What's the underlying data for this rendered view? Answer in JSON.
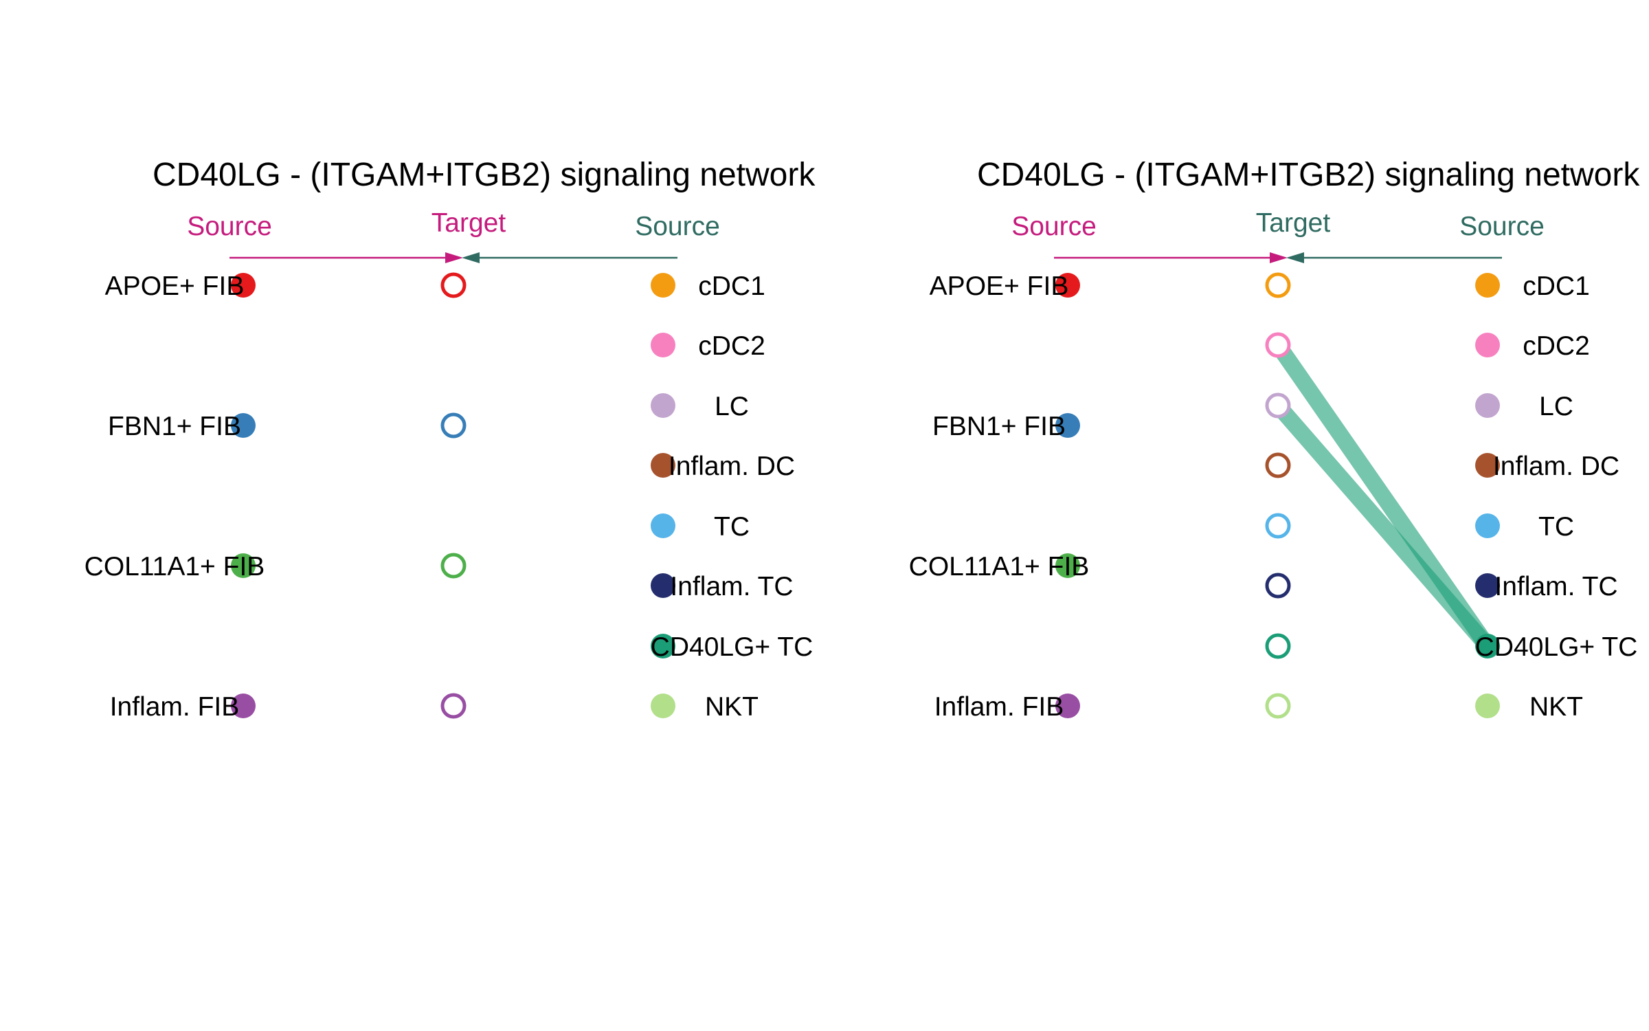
{
  "panels": [
    {
      "title": "CD40LG - (ITGAM+ITGB2) signaling network",
      "header_left": "Source",
      "header_middle": "Target",
      "header_right": "Source",
      "header_left_color": "#C51B7D",
      "header_middle_color": "#C51B7D",
      "header_right_color": "#2F6B61",
      "sources_left": [
        {
          "label": "APOE+ FIB",
          "color": "#E41A1C"
        },
        {
          "label": "FBN1+ FIB",
          "color": "#377EB8"
        },
        {
          "label": "COL11A1+ FIB",
          "color": "#4DAF4A"
        },
        {
          "label": "Inflam. FIB",
          "color": "#984EA3"
        }
      ],
      "targets": [
        {
          "color": "#E41A1C"
        },
        {
          "color": "#377EB8"
        },
        {
          "color": "#4DAF4A"
        },
        {
          "color": "#984EA3"
        }
      ],
      "sources_right": [
        {
          "label": "cDC1",
          "color": "#F39C12"
        },
        {
          "label": "cDC2",
          "color": "#F781BF"
        },
        {
          "label": "LC",
          "color": "#C2A5CF"
        },
        {
          "label": "Inflam. DC",
          "color": "#A6522C"
        },
        {
          "label": "TC",
          "color": "#56B4E9"
        },
        {
          "label": "Inflam. TC",
          "color": "#242E6E"
        },
        {
          "label": "CD40LG+ TC",
          "color": "#1B9E77"
        },
        {
          "label": "NKT",
          "color": "#B2DF8A"
        }
      ],
      "links": []
    },
    {
      "title": "CD40LG - (ITGAM+ITGB2) signaling network",
      "header_left": "Source",
      "header_middle": "Target",
      "header_right": "Source",
      "header_left_color": "#C51B7D",
      "header_middle_color": "#2F6B61",
      "header_right_color": "#2F6B61",
      "sources_left": [
        {
          "label": "APOE+ FIB",
          "color": "#E41A1C"
        },
        {
          "label": "FBN1+ FIB",
          "color": "#377EB8"
        },
        {
          "label": "COL11A1+ FIB",
          "color": "#4DAF4A"
        },
        {
          "label": "Inflam. FIB",
          "color": "#984EA3"
        }
      ],
      "targets": [
        {
          "color": "#F39C12"
        },
        {
          "color": "#F781BF"
        },
        {
          "color": "#C2A5CF"
        },
        {
          "color": "#A6522C"
        },
        {
          "color": "#56B4E9"
        },
        {
          "color": "#242E6E"
        },
        {
          "color": "#1B9E77"
        },
        {
          "color": "#B2DF8A"
        }
      ],
      "sources_right": [
        {
          "label": "cDC1",
          "color": "#F39C12"
        },
        {
          "label": "cDC2",
          "color": "#F781BF"
        },
        {
          "label": "LC",
          "color": "#C2A5CF"
        },
        {
          "label": "Inflam. DC",
          "color": "#A6522C"
        },
        {
          "label": "TC",
          "color": "#56B4E9"
        },
        {
          "label": "Inflam. TC",
          "color": "#242E6E"
        },
        {
          "label": "CD40LG+ TC",
          "color": "#1B9E77"
        },
        {
          "label": "NKT",
          "color": "#B2DF8A"
        }
      ],
      "links": [
        {
          "from": "CD40LG+ TC",
          "to_target_index": 1,
          "color": "#1B9E77"
        },
        {
          "from": "CD40LG+ TC",
          "to_target_index": 2,
          "color": "#1B9E77"
        }
      ]
    }
  ]
}
